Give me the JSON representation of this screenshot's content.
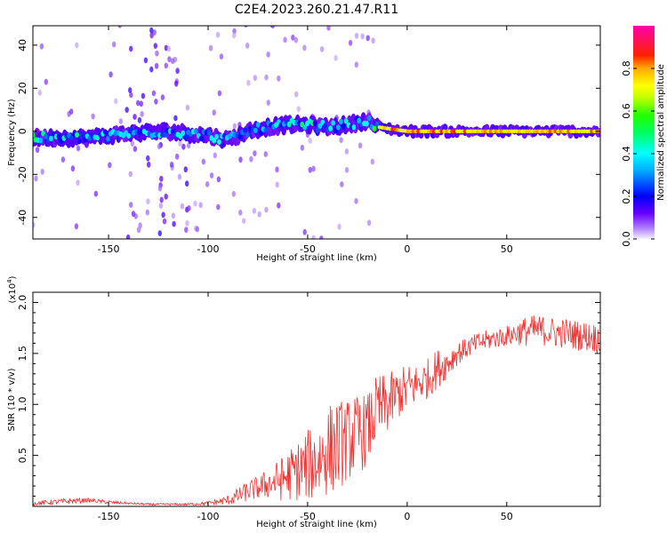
{
  "figure_title": "C2E4.2023.260.21.47.R11",
  "chart_data": [
    {
      "type": "heatmap",
      "title": "",
      "xlabel": "Height of straight line (km)",
      "ylabel": "Frequency (Hz)",
      "xlim": [
        -188,
        97
      ],
      "ylim": [
        -50,
        49
      ],
      "x_ticks": [
        -150,
        -100,
        -50,
        0,
        50
      ],
      "y_ticks": [
        -40,
        -20,
        0,
        20,
        40
      ],
      "colorbar": {
        "label": "Normalized spectral amplitude",
        "range": [
          0,
          1
        ],
        "ticks": [
          0.0,
          0.2,
          0.4,
          0.6,
          0.8
        ],
        "tick_labels": [
          "0.0",
          "0.2",
          "0.4",
          "0.6",
          "0.8"
        ],
        "colormap": [
          "#f2f2ff",
          "#6600ff",
          "#0000ff",
          "#00ffff",
          "#00ff00",
          "#ffff00",
          "#ff0000",
          "#ff00aa"
        ]
      },
      "ridge": {
        "x": [
          -185,
          -160,
          -140,
          -120,
          -100,
          -90,
          -80,
          -70,
          -60,
          -50,
          -40,
          -30,
          -20,
          -15,
          0,
          50,
          95
        ],
        "frequency": [
          -3,
          -3,
          -1,
          0,
          -2,
          -4,
          0,
          2,
          3,
          3,
          2,
          3,
          5,
          2,
          0,
          0,
          0
        ],
        "peak_amplitude": [
          0.4,
          0.35,
          0.3,
          0.35,
          0.3,
          0.3,
          0.3,
          0.35,
          0.4,
          0.4,
          0.4,
          0.35,
          0.3,
          0.85,
          0.9,
          0.85,
          0.85
        ]
      },
      "scatter_band_x": [
        -145,
        -110
      ],
      "grid": false
    },
    {
      "type": "line",
      "title": "",
      "xlabel": "Height of straight line (km)",
      "ylabel": "SNR (10 * v/v)",
      "y_scale_label": "(x10",
      "y_scale_exponent": "4",
      "y_scale_close": ")",
      "xlim": [
        -188,
        97
      ],
      "ylim": [
        0,
        2.1
      ],
      "x_ticks": [
        -150,
        -100,
        -50,
        0,
        50
      ],
      "y_ticks": [
        0.5,
        1.0,
        1.5,
        2.0
      ],
      "y_tick_labels": [
        "0.5",
        "1.0",
        "1.5",
        "2.0"
      ],
      "color": "#ee3333",
      "series": [
        {
          "x": [
            -188,
            -170,
            -160,
            -150,
            -140,
            -130,
            -120,
            -110,
            -100,
            -90,
            -85,
            -80,
            -75,
            -70,
            -65,
            -60,
            -55,
            -50,
            -45,
            -40,
            -35,
            -30,
            -25,
            -20,
            -15,
            -10,
            -5,
            0,
            5,
            10,
            15,
            20,
            25,
            30,
            35,
            40,
            45,
            50,
            55,
            60,
            65,
            70,
            75,
            80,
            85,
            90,
            95
          ],
          "y": [
            0.03,
            0.05,
            0.06,
            0.04,
            0.03,
            0.02,
            0.02,
            0.02,
            0.03,
            0.06,
            0.1,
            0.15,
            0.18,
            0.22,
            0.25,
            0.3,
            0.35,
            0.4,
            0.45,
            0.55,
            0.6,
            0.65,
            0.7,
            0.75,
            0.95,
            1.0,
            1.1,
            1.15,
            1.2,
            1.25,
            1.35,
            1.4,
            1.5,
            1.55,
            1.6,
            1.63,
            1.65,
            1.67,
            1.7,
            1.72,
            1.73,
            1.72,
            1.7,
            1.7,
            1.68,
            1.67,
            1.65
          ],
          "noise_amplitude": [
            0.02,
            0.03,
            0.02,
            0.02,
            0.01,
            0.01,
            0.01,
            0.01,
            0.02,
            0.05,
            0.08,
            0.1,
            0.12,
            0.15,
            0.2,
            0.25,
            0.3,
            0.35,
            0.4,
            0.45,
            0.45,
            0.4,
            0.4,
            0.35,
            0.35,
            0.3,
            0.25,
            0.25,
            0.2,
            0.2,
            0.2,
            0.15,
            0.12,
            0.1,
            0.1,
            0.1,
            0.1,
            0.1,
            0.12,
            0.15,
            0.15,
            0.15,
            0.15,
            0.15,
            0.15,
            0.15,
            0.15
          ]
        }
      ],
      "grid": false
    }
  ]
}
